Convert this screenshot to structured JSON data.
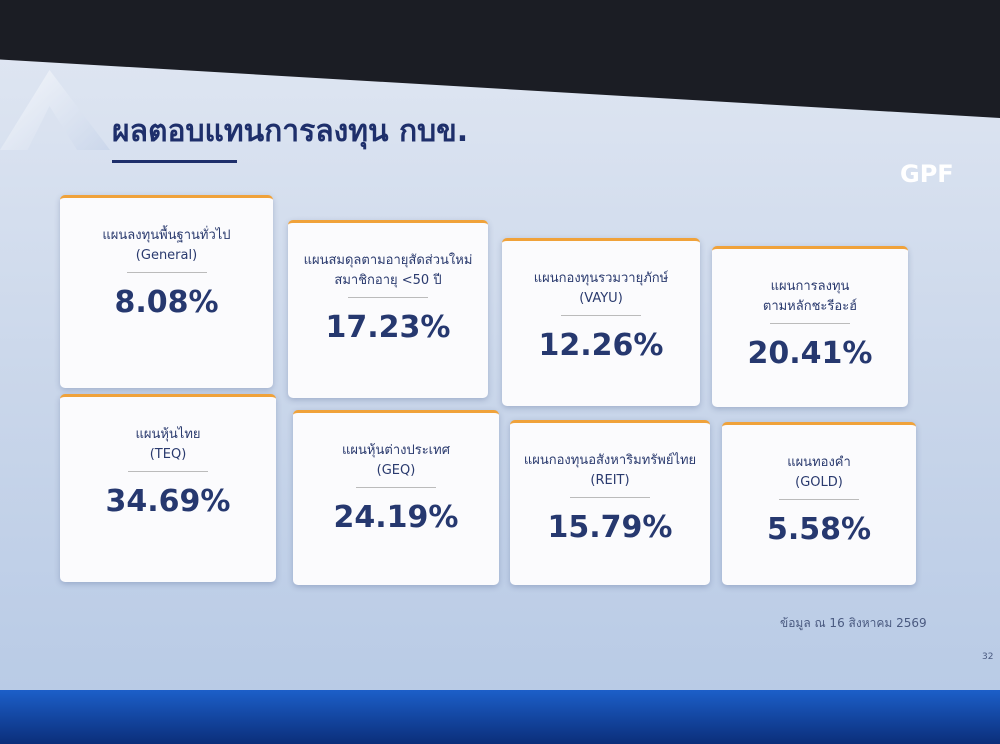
{
  "header": {
    "title": "ผลตอบแทนการลงทุน กบข.",
    "logo": "GPF"
  },
  "cards": [
    {
      "lines": [
        "แผนลงทุนพื้นฐานทั่วไป",
        "(General)"
      ],
      "value": "8.08%"
    },
    {
      "lines": [
        "แผนสมดุลตามอายุสัดส่วนใหม่",
        "สมาชิกอายุ <50 ปี"
      ],
      "value": "17.23%"
    },
    {
      "lines": [
        "แผนกองทุนรวมวายุภักษ์",
        "(VAYU)"
      ],
      "value": "12.26%"
    },
    {
      "lines": [
        "แผนการลงทุน",
        "ตามหลักชะรีอะฮ์"
      ],
      "value": "20.41%"
    },
    {
      "lines": [
        "แผนหุ้นไทย",
        "(TEQ)"
      ],
      "value": "34.69%"
    },
    {
      "lines": [
        "แผนหุ้นต่างประเทศ",
        "(GEQ)"
      ],
      "value": "24.19%"
    },
    {
      "lines": [
        "แผนกองทุนอสังหาริมทรัพย์ไทย",
        "(REIT)"
      ],
      "value": "15.79%"
    },
    {
      "lines": [
        "แผนทองคำ",
        "(GOLD)"
      ],
      "value": "5.58%"
    }
  ],
  "footer": {
    "note": "ข้อมูล ณ 16 สิงหาคม 2569",
    "page": "32"
  }
}
